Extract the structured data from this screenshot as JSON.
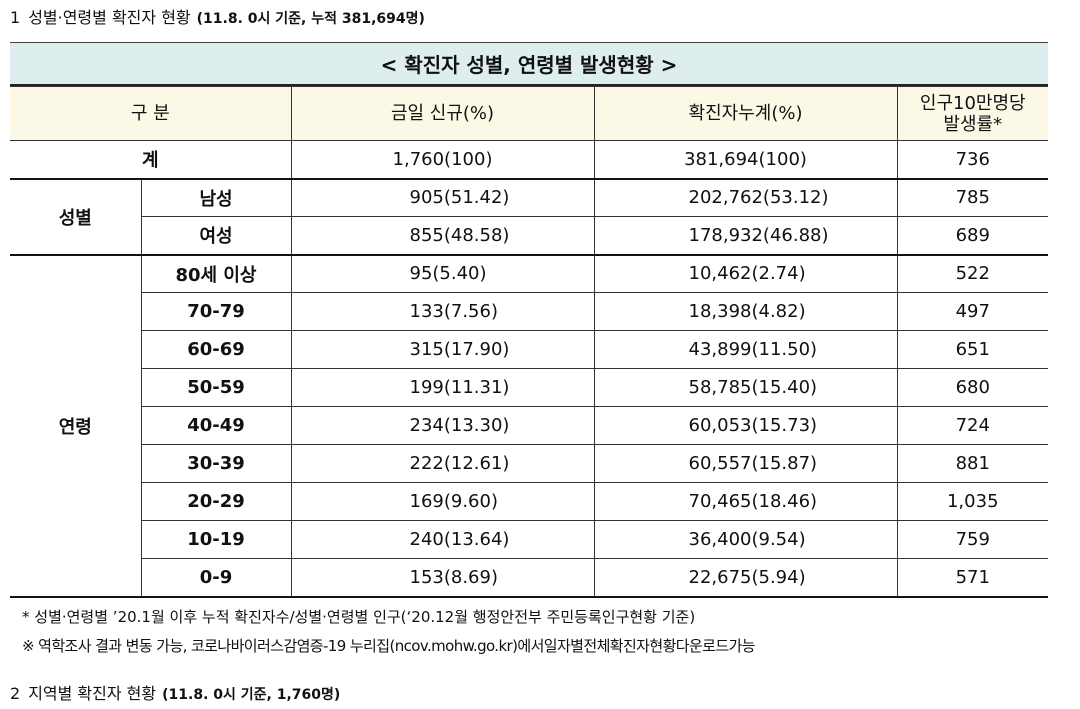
{
  "heading1": {
    "number": "1",
    "title": "성별·연령별 확진자 현황",
    "subtitle": "(11.8. 0시 기준, 누적 381,694명)"
  },
  "banner": {
    "title": "< 확진자 성별, 연령별 발생현황 >"
  },
  "table": {
    "headers": {
      "category": "구 분",
      "new": "금일 신규(%)",
      "cumulative": "확진자누계(%)",
      "rate_line1": "인구10만명당",
      "rate_line2": "발생률*"
    },
    "total": {
      "label": "계",
      "new": "1,760(100)",
      "cumulative": "381,694(100)",
      "rate": "736"
    },
    "sex": {
      "group": "성별",
      "rows": [
        {
          "label": "남성",
          "new": "905(51.42)",
          "cumulative": "202,762(53.12)",
          "rate": "785"
        },
        {
          "label": "여성",
          "new": "855(48.58)",
          "cumulative": "178,932(46.88)",
          "rate": "689"
        }
      ]
    },
    "age": {
      "group": "연령",
      "rows": [
        {
          "label": "80세 이상",
          "new": "95(5.40)",
          "cumulative": "10,462(2.74)",
          "rate": "522"
        },
        {
          "label": "70-79",
          "new": "133(7.56)",
          "cumulative": "18,398(4.82)",
          "rate": "497"
        },
        {
          "label": "60-69",
          "new": "315(17.90)",
          "cumulative": "43,899(11.50)",
          "rate": "651"
        },
        {
          "label": "50-59",
          "new": "199(11.31)",
          "cumulative": "58,785(15.40)",
          "rate": "680"
        },
        {
          "label": "40-49",
          "new": "234(13.30)",
          "cumulative": "60,053(15.73)",
          "rate": "724"
        },
        {
          "label": "30-39",
          "new": "222(12.61)",
          "cumulative": "60,557(15.87)",
          "rate": "881"
        },
        {
          "label": "20-29",
          "new": "169(9.60)",
          "cumulative": "70,465(18.46)",
          "rate": "1,035"
        },
        {
          "label": "10-19",
          "new": "240(13.64)",
          "cumulative": "36,400(9.54)",
          "rate": "759"
        },
        {
          "label": "0-9",
          "new": "153(8.69)",
          "cumulative": "22,675(5.94)",
          "rate": "571"
        }
      ]
    }
  },
  "notes": {
    "note1": "* 성별·연령별 ’20.1월 이후 누적 확진자수/성별·연령별 인구(‘20.12월 행정안전부 주민등록인구현황 기준)",
    "note2": "※ 역학조사 결과 변동 가능, 코로나바이러스감염증-19 누리집(ncov.mohw.go.kr)에서일자별전체확진자현황다운로드가능"
  },
  "heading2": {
    "number": "2",
    "title": "지역별 확진자 현황",
    "subtitle": "(11.8. 0시 기준, 1,760명)"
  },
  "colors": {
    "banner_bg": "#deeeef",
    "header_bg": "#fcf8e6"
  }
}
